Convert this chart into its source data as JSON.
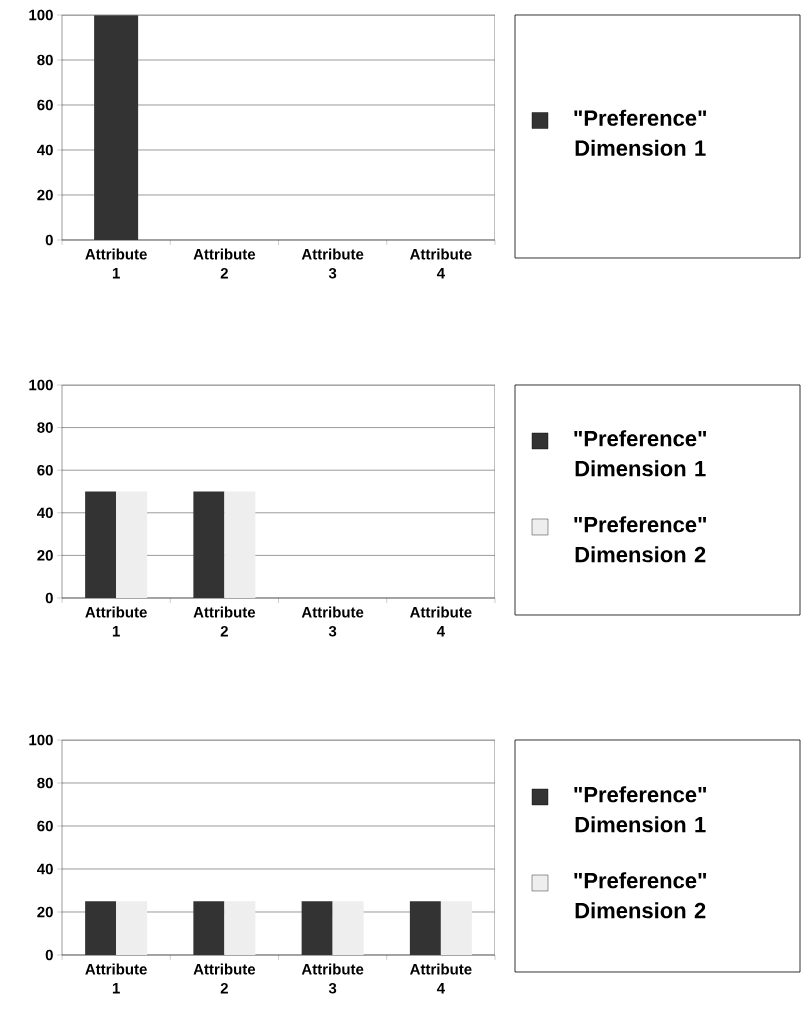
{
  "chart_data": [
    {
      "type": "bar",
      "categories": [
        "Attribute 1",
        "Attribute 2",
        "Attribute 3",
        "Attribute 4"
      ],
      "series": [
        {
          "name": "\"Preference\" Dimension 1",
          "color": "#333333",
          "values": [
            100,
            0,
            0,
            0
          ]
        }
      ],
      "ylim": [
        0,
        100
      ],
      "yticks": [
        0,
        20,
        40,
        60,
        80,
        100
      ],
      "grid": "y",
      "legend": "right"
    },
    {
      "type": "bar",
      "categories": [
        "Attribute 1",
        "Attribute 2",
        "Attribute 3",
        "Attribute 4"
      ],
      "series": [
        {
          "name": "\"Preference\" Dimension 1",
          "color": "#333333",
          "values": [
            50,
            50,
            0,
            0
          ]
        },
        {
          "name": "\"Preference\" Dimension 2",
          "color": "#eeeeee",
          "values": [
            50,
            50,
            0,
            0
          ]
        }
      ],
      "ylim": [
        0,
        100
      ],
      "yticks": [
        0,
        20,
        40,
        60,
        80,
        100
      ],
      "grid": "y",
      "legend": "right"
    },
    {
      "type": "bar",
      "categories": [
        "Attribute 1",
        "Attribute 2",
        "Attribute 3",
        "Attribute 4"
      ],
      "series": [
        {
          "name": "\"Preference\" Dimension 1",
          "color": "#333333",
          "values": [
            25,
            25,
            25,
            25
          ]
        },
        {
          "name": "\"Preference\" Dimension 2",
          "color": "#eeeeee",
          "values": [
            25,
            25,
            25,
            25
          ]
        }
      ],
      "ylim": [
        0,
        100
      ],
      "yticks": [
        0,
        20,
        40,
        60,
        80,
        100
      ],
      "grid": "y",
      "legend": "right"
    }
  ]
}
